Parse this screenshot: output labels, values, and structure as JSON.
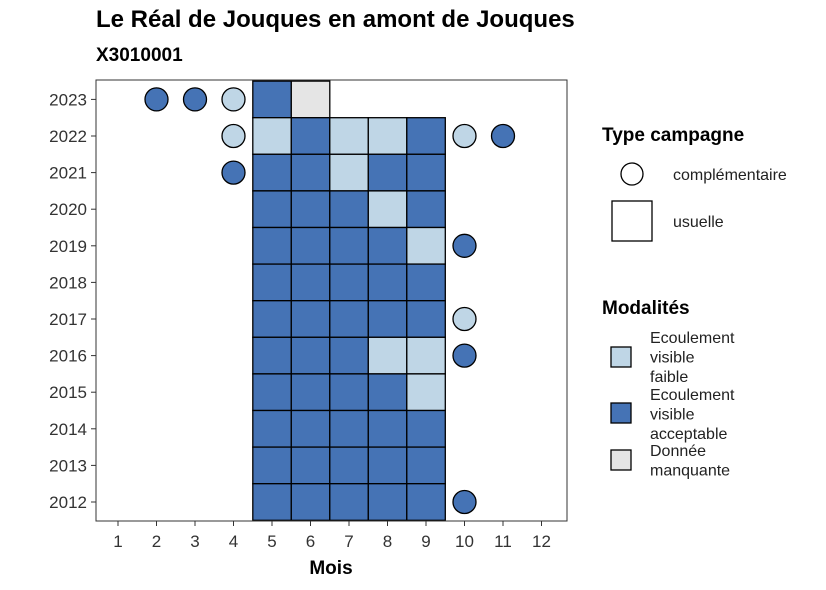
{
  "chart_data": {
    "type": "heatmap",
    "title": "Le Réal de Jouques en amont de Jouques",
    "subtitle": "X3010001",
    "xlabel": "Mois",
    "ylabel": "",
    "x_ticks": [
      1,
      2,
      3,
      4,
      5,
      6,
      7,
      8,
      9,
      10,
      11,
      12
    ],
    "y_ticks": [
      2012,
      2013,
      2014,
      2015,
      2016,
      2017,
      2018,
      2019,
      2020,
      2021,
      2022,
      2023
    ],
    "colors": {
      "faible": "#bfd6e6",
      "acceptable": "#4573b5",
      "manquante": "#e5e5e5"
    },
    "legend_shape": {
      "title": "Type campagne",
      "items": [
        {
          "shape": "circle",
          "label": "complémentaire"
        },
        {
          "shape": "square",
          "label": "usuelle"
        }
      ]
    },
    "legend_fill": {
      "title": "Modalités",
      "items": [
        {
          "key": "faible",
          "lines": [
            "Ecoulement",
            "visible",
            "faible"
          ]
        },
        {
          "key": "acceptable",
          "lines": [
            "Ecoulement",
            "visible",
            "acceptable"
          ]
        },
        {
          "key": "manquante",
          "lines": [
            "Donnée",
            "manquante"
          ]
        }
      ]
    },
    "usuelle": [
      {
        "year": 2023,
        "month": 5,
        "v": "acceptable"
      },
      {
        "year": 2023,
        "month": 6,
        "v": "manquante"
      },
      {
        "year": 2022,
        "month": 5,
        "v": "faible"
      },
      {
        "year": 2022,
        "month": 6,
        "v": "acceptable"
      },
      {
        "year": 2022,
        "month": 7,
        "v": "faible"
      },
      {
        "year": 2022,
        "month": 8,
        "v": "faible"
      },
      {
        "year": 2022,
        "month": 9,
        "v": "acceptable"
      },
      {
        "year": 2021,
        "month": 5,
        "v": "acceptable"
      },
      {
        "year": 2021,
        "month": 6,
        "v": "acceptable"
      },
      {
        "year": 2021,
        "month": 7,
        "v": "faible"
      },
      {
        "year": 2021,
        "month": 8,
        "v": "acceptable"
      },
      {
        "year": 2021,
        "month": 9,
        "v": "acceptable"
      },
      {
        "year": 2020,
        "month": 5,
        "v": "acceptable"
      },
      {
        "year": 2020,
        "month": 6,
        "v": "acceptable"
      },
      {
        "year": 2020,
        "month": 7,
        "v": "acceptable"
      },
      {
        "year": 2020,
        "month": 8,
        "v": "faible"
      },
      {
        "year": 2020,
        "month": 9,
        "v": "acceptable"
      },
      {
        "year": 2019,
        "month": 5,
        "v": "acceptable"
      },
      {
        "year": 2019,
        "month": 6,
        "v": "acceptable"
      },
      {
        "year": 2019,
        "month": 7,
        "v": "acceptable"
      },
      {
        "year": 2019,
        "month": 8,
        "v": "acceptable"
      },
      {
        "year": 2019,
        "month": 9,
        "v": "faible"
      },
      {
        "year": 2018,
        "month": 5,
        "v": "acceptable"
      },
      {
        "year": 2018,
        "month": 6,
        "v": "acceptable"
      },
      {
        "year": 2018,
        "month": 7,
        "v": "acceptable"
      },
      {
        "year": 2018,
        "month": 8,
        "v": "acceptable"
      },
      {
        "year": 2018,
        "month": 9,
        "v": "acceptable"
      },
      {
        "year": 2017,
        "month": 5,
        "v": "acceptable"
      },
      {
        "year": 2017,
        "month": 6,
        "v": "acceptable"
      },
      {
        "year": 2017,
        "month": 7,
        "v": "acceptable"
      },
      {
        "year": 2017,
        "month": 8,
        "v": "acceptable"
      },
      {
        "year": 2017,
        "month": 9,
        "v": "acceptable"
      },
      {
        "year": 2016,
        "month": 5,
        "v": "acceptable"
      },
      {
        "year": 2016,
        "month": 6,
        "v": "acceptable"
      },
      {
        "year": 2016,
        "month": 7,
        "v": "acceptable"
      },
      {
        "year": 2016,
        "month": 8,
        "v": "faible"
      },
      {
        "year": 2016,
        "month": 9,
        "v": "faible"
      },
      {
        "year": 2015,
        "month": 5,
        "v": "acceptable"
      },
      {
        "year": 2015,
        "month": 6,
        "v": "acceptable"
      },
      {
        "year": 2015,
        "month": 7,
        "v": "acceptable"
      },
      {
        "year": 2015,
        "month": 8,
        "v": "acceptable"
      },
      {
        "year": 2015,
        "month": 9,
        "v": "faible"
      },
      {
        "year": 2014,
        "month": 5,
        "v": "acceptable"
      },
      {
        "year": 2014,
        "month": 6,
        "v": "acceptable"
      },
      {
        "year": 2014,
        "month": 7,
        "v": "acceptable"
      },
      {
        "year": 2014,
        "month": 8,
        "v": "acceptable"
      },
      {
        "year": 2014,
        "month": 9,
        "v": "acceptable"
      },
      {
        "year": 2013,
        "month": 5,
        "v": "acceptable"
      },
      {
        "year": 2013,
        "month": 6,
        "v": "acceptable"
      },
      {
        "year": 2013,
        "month": 7,
        "v": "acceptable"
      },
      {
        "year": 2013,
        "month": 8,
        "v": "acceptable"
      },
      {
        "year": 2013,
        "month": 9,
        "v": "acceptable"
      },
      {
        "year": 2012,
        "month": 5,
        "v": "acceptable"
      },
      {
        "year": 2012,
        "month": 6,
        "v": "acceptable"
      },
      {
        "year": 2012,
        "month": 7,
        "v": "acceptable"
      },
      {
        "year": 2012,
        "month": 8,
        "v": "acceptable"
      },
      {
        "year": 2012,
        "month": 9,
        "v": "acceptable"
      }
    ],
    "complementaire": [
      {
        "year": 2023,
        "month": 2,
        "v": "acceptable"
      },
      {
        "year": 2023,
        "month": 3,
        "v": "acceptable"
      },
      {
        "year": 2023,
        "month": 4,
        "v": "faible"
      },
      {
        "year": 2022,
        "month": 4,
        "v": "faible"
      },
      {
        "year": 2022,
        "month": 10,
        "v": "faible"
      },
      {
        "year": 2022,
        "month": 11,
        "v": "acceptable"
      },
      {
        "year": 2021,
        "month": 4,
        "v": "acceptable"
      },
      {
        "year": 2019,
        "month": 10,
        "v": "acceptable"
      },
      {
        "year": 2017,
        "month": 10,
        "v": "faible"
      },
      {
        "year": 2016,
        "month": 10,
        "v": "acceptable"
      },
      {
        "year": 2012,
        "month": 10,
        "v": "acceptable"
      }
    ]
  }
}
